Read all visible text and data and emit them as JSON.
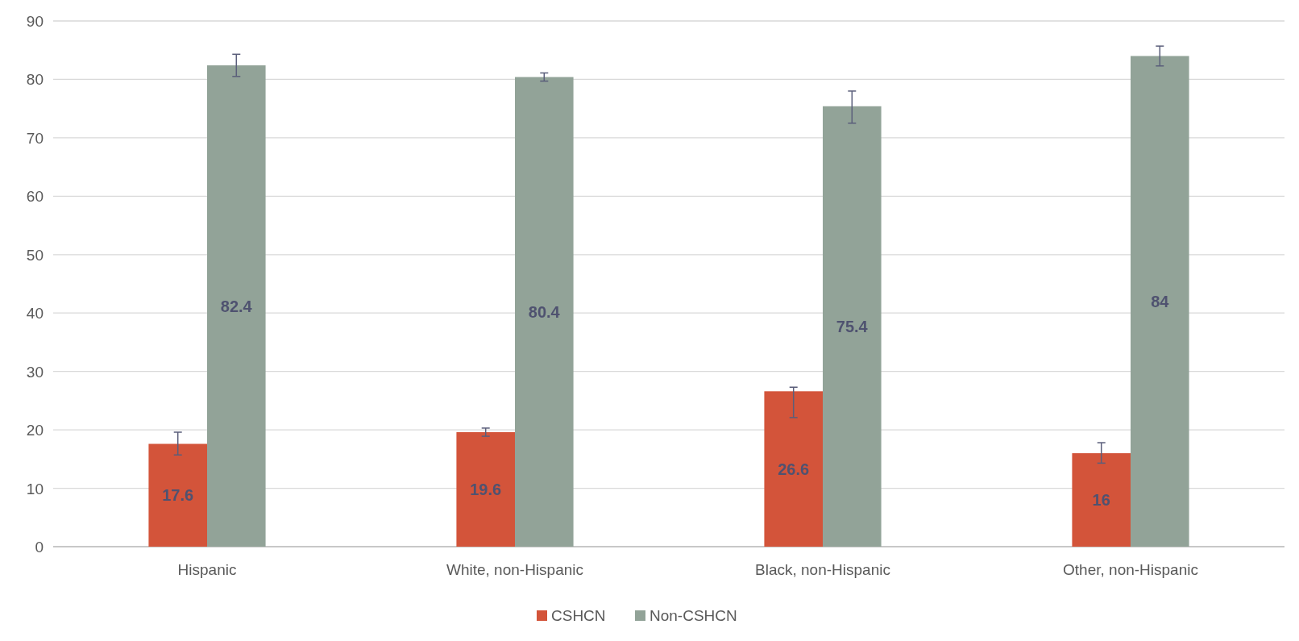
{
  "chart_data": {
    "type": "bar",
    "categories": [
      "Hispanic",
      "White, non-Hispanic",
      "Black, non-Hispanic",
      "Other, non-Hispanic"
    ],
    "series": [
      {
        "name": "CSHCN",
        "color": "#d3543a",
        "values": [
          17.6,
          19.6,
          26.6,
          16
        ],
        "errors": [
          [
            15.7,
            19.6
          ],
          [
            18.9,
            20.3
          ],
          [
            22.1,
            27.3
          ],
          [
            14.3,
            17.8
          ]
        ]
      },
      {
        "name": "Non-CSHCN",
        "color": "#92a398",
        "values": [
          82.4,
          80.4,
          75.4,
          84
        ],
        "errors": [
          [
            80.5,
            84.3
          ],
          [
            79.7,
            81.1
          ],
          [
            72.5,
            78
          ],
          [
            82.3,
            85.7
          ]
        ]
      }
    ],
    "ylim": [
      0,
      90
    ],
    "yticks": [
      0,
      10,
      20,
      30,
      40,
      50,
      60,
      70,
      80,
      90
    ],
    "grid": "y",
    "legend": "bottom",
    "data_labels": true
  }
}
